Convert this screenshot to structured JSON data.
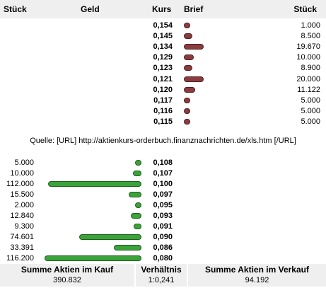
{
  "header": {
    "stueck_left": "Stück",
    "geld": "Geld",
    "kurs": "Kurs",
    "brief": "Brief",
    "stueck_right": "Stück"
  },
  "sell_rows": [
    {
      "kurs": "0,154",
      "qty": "1.000",
      "value": 1000
    },
    {
      "kurs": "0,145",
      "qty": "8.500",
      "value": 8500
    },
    {
      "kurs": "0,134",
      "qty": "19.670",
      "value": 19670
    },
    {
      "kurs": "0,129",
      "qty": "10.000",
      "value": 10000
    },
    {
      "kurs": "0,123",
      "qty": "8.900",
      "value": 8900
    },
    {
      "kurs": "0,121",
      "qty": "20.000",
      "value": 20000
    },
    {
      "kurs": "0,120",
      "qty": "11.122",
      "value": 11122
    },
    {
      "kurs": "0,117",
      "qty": "5.000",
      "value": 5000
    },
    {
      "kurs": "0,116",
      "qty": "5.000",
      "value": 5000
    },
    {
      "kurs": "0,115",
      "qty": "5.000",
      "value": 5000
    }
  ],
  "source_text": "Quelle: [URL] http://aktienkurs-orderbuch.finanznachrichten.de/xls.htm [/URL]",
  "buy_rows": [
    {
      "qty": "5.000",
      "kurs": "0,108",
      "value": 5000
    },
    {
      "qty": "10.000",
      "kurs": "0,107",
      "value": 10000
    },
    {
      "qty": "112.000",
      "kurs": "0,100",
      "value": 112000
    },
    {
      "qty": "15.500",
      "kurs": "0,097",
      "value": 15500
    },
    {
      "qty": "2.000",
      "kurs": "0,095",
      "value": 2000
    },
    {
      "qty": "12.840",
      "kurs": "0,093",
      "value": 12840
    },
    {
      "qty": "9.300",
      "kurs": "0,091",
      "value": 9300
    },
    {
      "qty": "74.601",
      "kurs": "0,090",
      "value": 74601
    },
    {
      "qty": "33.391",
      "kurs": "0,086",
      "value": 33391
    },
    {
      "qty": "116.200",
      "kurs": "0,080",
      "value": 116200
    }
  ],
  "footer": {
    "kauf_label": "Summe Aktien im Kauf",
    "kauf_value": "390.832",
    "ratio_label": "Verhältnis",
    "ratio_value": "1:0,241",
    "verkauf_label": "Summe Aktien im Verkauf",
    "verkauf_value": "94.192"
  },
  "colors": {
    "sell_bar": "#8b3c3e",
    "buy_bar": "#3aa33a",
    "header_bg": "#efefef"
  }
}
